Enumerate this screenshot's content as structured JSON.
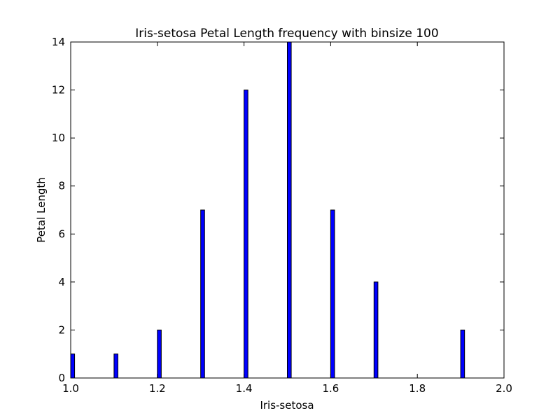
{
  "chart_data": {
    "type": "bar",
    "title": "Iris-setosa Petal Length frequency with binsize 100",
    "xlabel": "Iris-setosa",
    "ylabel": "Petal Length",
    "xlim": [
      1.0,
      2.0
    ],
    "ylim": [
      0,
      14
    ],
    "x_ticks": [
      "1.0",
      "1.2",
      "1.4",
      "1.6",
      "1.8",
      "2.0"
    ],
    "y_ticks": [
      "0",
      "2",
      "4",
      "6",
      "8",
      "10",
      "12",
      "14"
    ],
    "bin_width": 0.009,
    "bars": [
      {
        "x": 1.0,
        "value": 1
      },
      {
        "x": 1.1,
        "value": 1
      },
      {
        "x": 1.2,
        "value": 2
      },
      {
        "x": 1.3,
        "value": 7
      },
      {
        "x": 1.4,
        "value": 12
      },
      {
        "x": 1.5,
        "value": 14
      },
      {
        "x": 1.6,
        "value": 7
      },
      {
        "x": 1.7,
        "value": 4
      },
      {
        "x": 1.9,
        "value": 2
      }
    ],
    "bar_color": "#0000ff",
    "grid": false,
    "legend": false
  }
}
